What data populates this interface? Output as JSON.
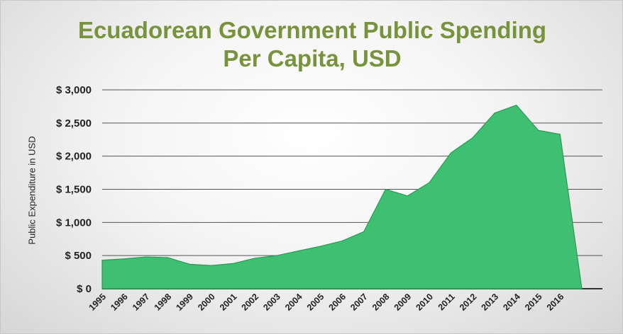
{
  "chart_data": {
    "type": "area",
    "title_line1": "Ecuadorean Government Public Spending",
    "title_line2": "Per Capita, USD",
    "xlabel": "",
    "ylabel": "Public Expenditure in USD",
    "ylim": [
      0,
      3000
    ],
    "y_ticks": [
      0,
      500,
      1000,
      1500,
      2000,
      2500,
      3000
    ],
    "y_tick_labels": [
      "$ 0",
      "$ 500",
      "$ 1,000",
      "$ 1,500",
      "$ 2,000",
      "$ 2,500",
      "$ 3,000"
    ],
    "categories": [
      "1995",
      "1996",
      "1997",
      "1998",
      "1999",
      "2000",
      "2001",
      "2002",
      "2003",
      "2004",
      "2005",
      "2006",
      "2007",
      "2008",
      "2009",
      "2010",
      "2011",
      "2012",
      "2013",
      "2014",
      "2015",
      "2016"
    ],
    "series": [
      {
        "x": [
          "1995",
          "1996",
          "1997",
          "1998",
          "1999",
          "2000",
          "2001",
          "2002",
          "2003",
          "2004",
          "2005",
          "2006",
          "2007",
          "2008",
          "2009",
          "2010",
          "2011",
          "2012",
          "2013",
          "2014",
          "2015",
          "2016",
          ""
        ],
        "values": [
          430,
          450,
          480,
          470,
          370,
          350,
          380,
          460,
          500,
          570,
          640,
          720,
          860,
          1500,
          1400,
          1600,
          2050,
          2280,
          2650,
          2770,
          2390,
          2330,
          0
        ]
      }
    ],
    "grid": true,
    "legend": "none",
    "colors": {
      "area": "#3fbf72",
      "area_edge": "#2e9a57",
      "title": "#77933c",
      "gridline": "#555555",
      "baseline": "#333333"
    }
  }
}
